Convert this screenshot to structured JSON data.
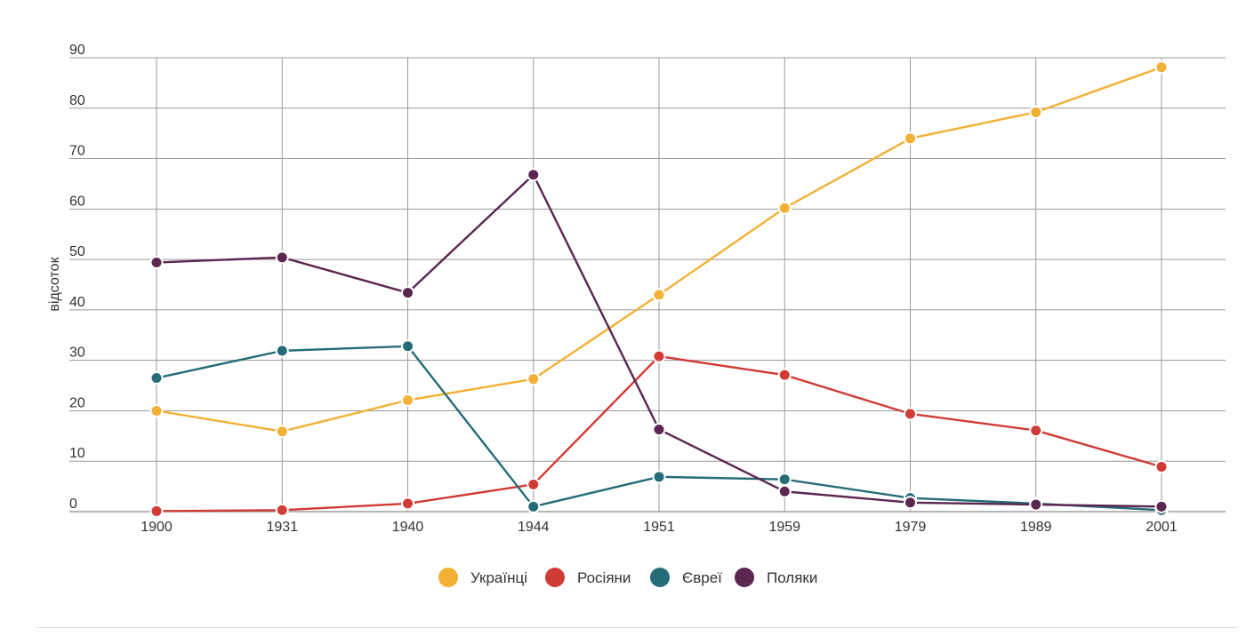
{
  "chart_data": {
    "type": "line",
    "title": "",
    "xlabel": "",
    "ylabel": "відсоток",
    "categories": [
      "1900",
      "1931",
      "1940",
      "1944",
      "1951",
      "1959",
      "1979",
      "1989",
      "2001"
    ],
    "ylim": [
      0,
      90
    ],
    "yticks": [
      0,
      10,
      20,
      30,
      40,
      50,
      60,
      70,
      80,
      90
    ],
    "grid": true,
    "legend_position": "bottom",
    "series": [
      {
        "name": "Українці",
        "color": "#f2b134",
        "values": [
          20,
          15.9,
          22.1,
          26.3,
          43,
          60.2,
          74,
          79.2,
          88.1
        ]
      },
      {
        "name": "Росіяни",
        "color": "#d13b36",
        "values": [
          0.1,
          0.3,
          1.6,
          5.4,
          30.8,
          27.1,
          19.4,
          16.1,
          8.9
        ]
      },
      {
        "name": "Євреї",
        "color": "#256b78",
        "values": [
          26.5,
          31.9,
          32.8,
          1,
          6.9,
          6.4,
          2.7,
          1.6,
          0.3
        ]
      },
      {
        "name": "Поляки",
        "color": "#5b2650",
        "values": [
          49.4,
          50.4,
          43.4,
          66.8,
          16.3,
          4,
          1.8,
          1.4,
          1
        ]
      }
    ]
  }
}
